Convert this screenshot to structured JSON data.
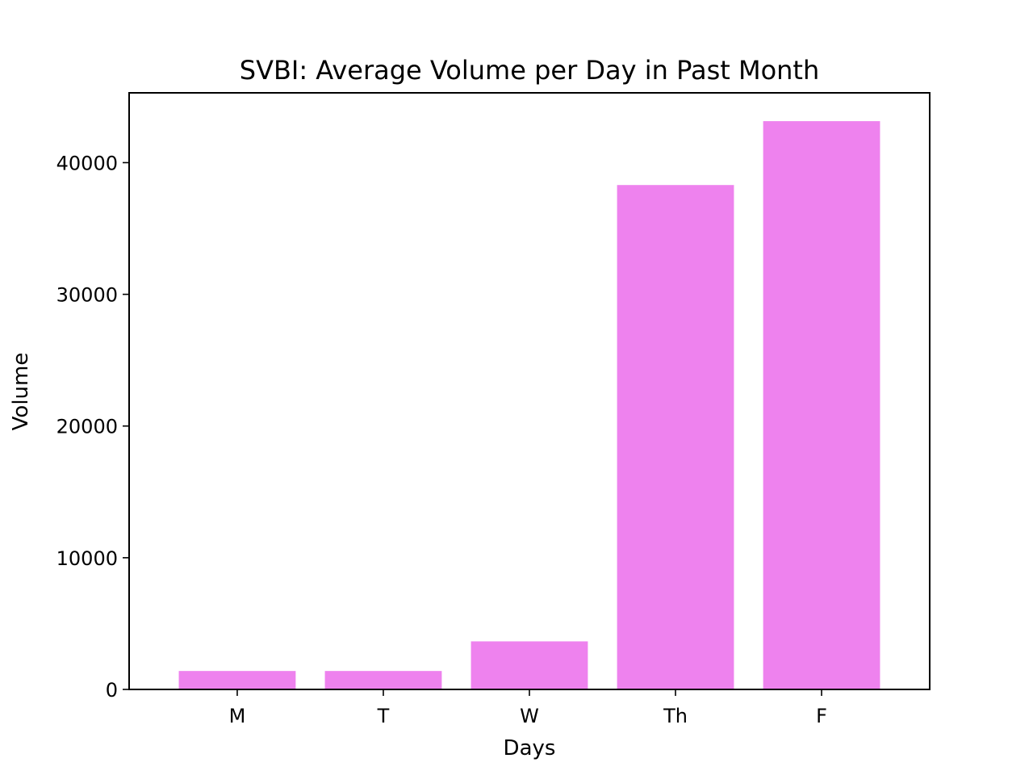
{
  "chart_data": {
    "type": "bar",
    "title": "SVBI: Average Volume per Day in Past Month",
    "xlabel": "Days",
    "ylabel": "Volume",
    "categories": [
      "M",
      "T",
      "W",
      "Th",
      "F"
    ],
    "values": [
      1400,
      1400,
      3650,
      38300,
      43150
    ],
    "ylim": [
      0,
      45300
    ],
    "yticks": [
      0,
      10000,
      20000,
      30000,
      40000
    ],
    "ytick_labels": [
      "0",
      "10000",
      "20000",
      "30000",
      "40000"
    ],
    "bar_color": "#ee82ee",
    "grid": false,
    "legend": "none"
  }
}
